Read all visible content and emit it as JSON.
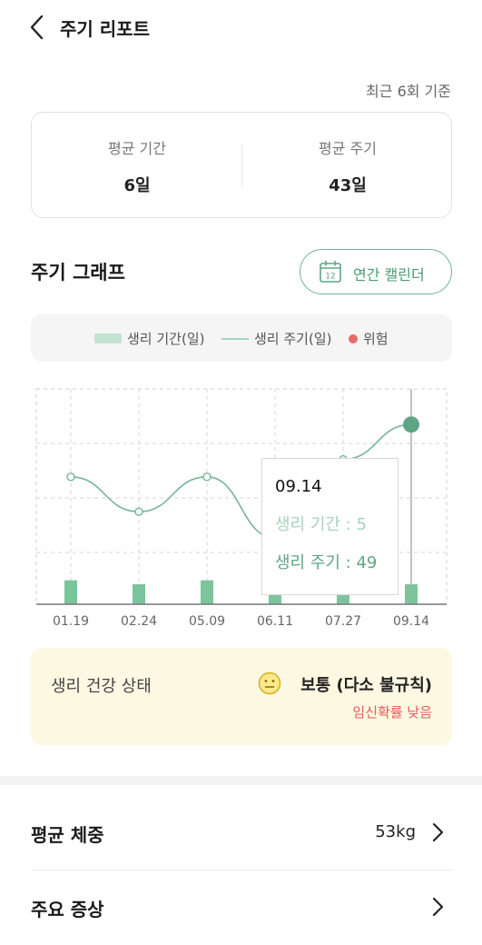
{
  "header": {
    "title": "주기 리포트",
    "back_icon": "chevron-left-icon"
  },
  "basis_text": "최근 6회 기준",
  "summary": {
    "avg_period_label": "평균 기간",
    "avg_period_value": "6일",
    "avg_cycle_label": "평균 주기",
    "avg_cycle_value": "43일"
  },
  "graph_section": {
    "title": "주기 그래프",
    "calendar_button_label": "연간 캘린더",
    "calendar_icon": "calendar-icon",
    "calendar_icon_number": "12"
  },
  "legend": {
    "period_label": "생리 기간(일)",
    "cycle_label": "생리 주기(일)",
    "risk_label": "위험"
  },
  "colors": {
    "accent": "#4c9a74",
    "bar": "#7cc59c",
    "line": "#74b596",
    "risk": "#e86a6a",
    "status_bg": "#fdf8e2"
  },
  "chart_data": {
    "type": "bar+line",
    "categories": [
      "01.19",
      "02.24",
      "05.09",
      "06.11",
      "07.27",
      "09.14"
    ],
    "series": [
      {
        "name": "생리 기간(일)",
        "type": "bar",
        "values": [
          6,
          5,
          6,
          5,
          5,
          5
        ]
      },
      {
        "name": "생리 주기(일)",
        "type": "line",
        "values": [
          43,
          39,
          43,
          36,
          45,
          49
        ]
      }
    ],
    "selected_index": 5,
    "grid": true,
    "tooltip": {
      "date": "09.14",
      "period_text": "생리 기간 : 5",
      "cycle_text": "생리 주기 : 49"
    }
  },
  "status": {
    "label": "생리 건강 상태",
    "value": "보통 (다소 불규칙)",
    "sub": "임신확률 낮음",
    "icon": "neutral-face-icon"
  },
  "rows": [
    {
      "title": "평균 체중",
      "value": "53kg"
    },
    {
      "title": "주요 증상",
      "value": ""
    }
  ]
}
